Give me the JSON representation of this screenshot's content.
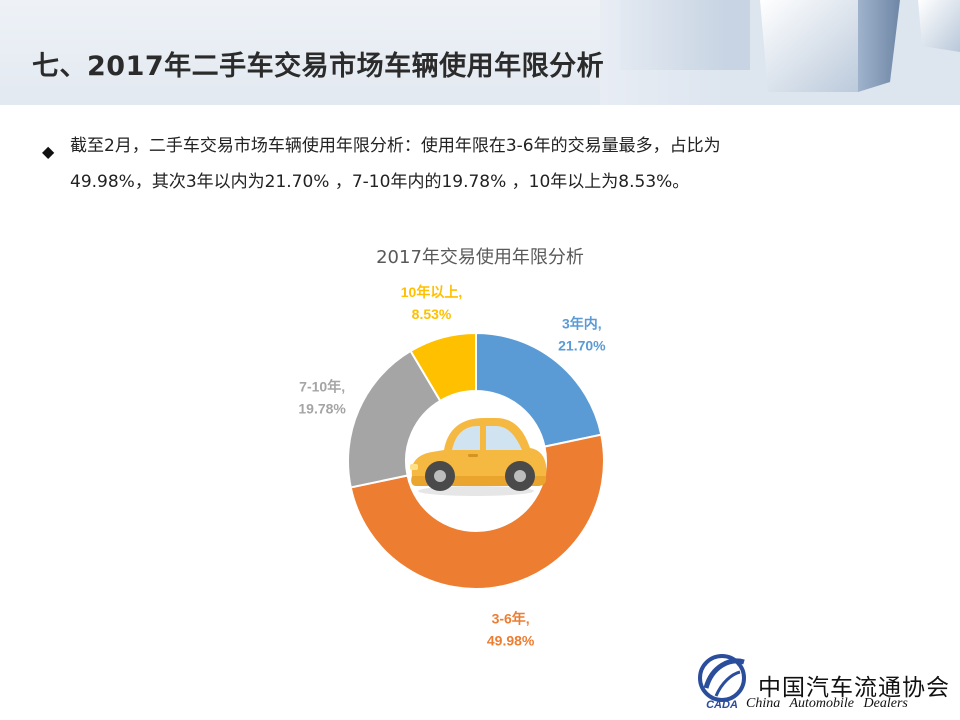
{
  "page": {
    "title": "七、2017年二手车交易市场车辆使用年限分析",
    "bullet_line_1": "截至2月，二手车交易市场车辆使用年限分析：使用年限在3-6年的交易量最多，占比为",
    "bullet_line_2": "49.98%，其次3年以内为21.70% ，7-10年内的19.78% ，10年以上为8.53%。",
    "bullet_icon": "diamond-bullet-icon"
  },
  "chart_data": {
    "type": "pie",
    "title": "2017年交易使用年限分析",
    "center_icon": "car-icon",
    "slices": [
      {
        "name": "3年内",
        "value": 21.7,
        "label": "21.70%",
        "color": "#5b9bd5"
      },
      {
        "name": "3-6年",
        "value": 49.98,
        "label": "49.98%",
        "color": "#ed7d31"
      },
      {
        "name": "7-10年",
        "value": 19.78,
        "label": "19.78%",
        "color": "#a5a5a5"
      },
      {
        "name": "10年以上",
        "value": 8.53,
        "label": "8.53%",
        "color": "#ffc000"
      }
    ]
  },
  "footer": {
    "org_name_cn": "中国汽车流通协会",
    "org_name_en": "China Automobile Dealers",
    "logo_text": "CADA"
  }
}
